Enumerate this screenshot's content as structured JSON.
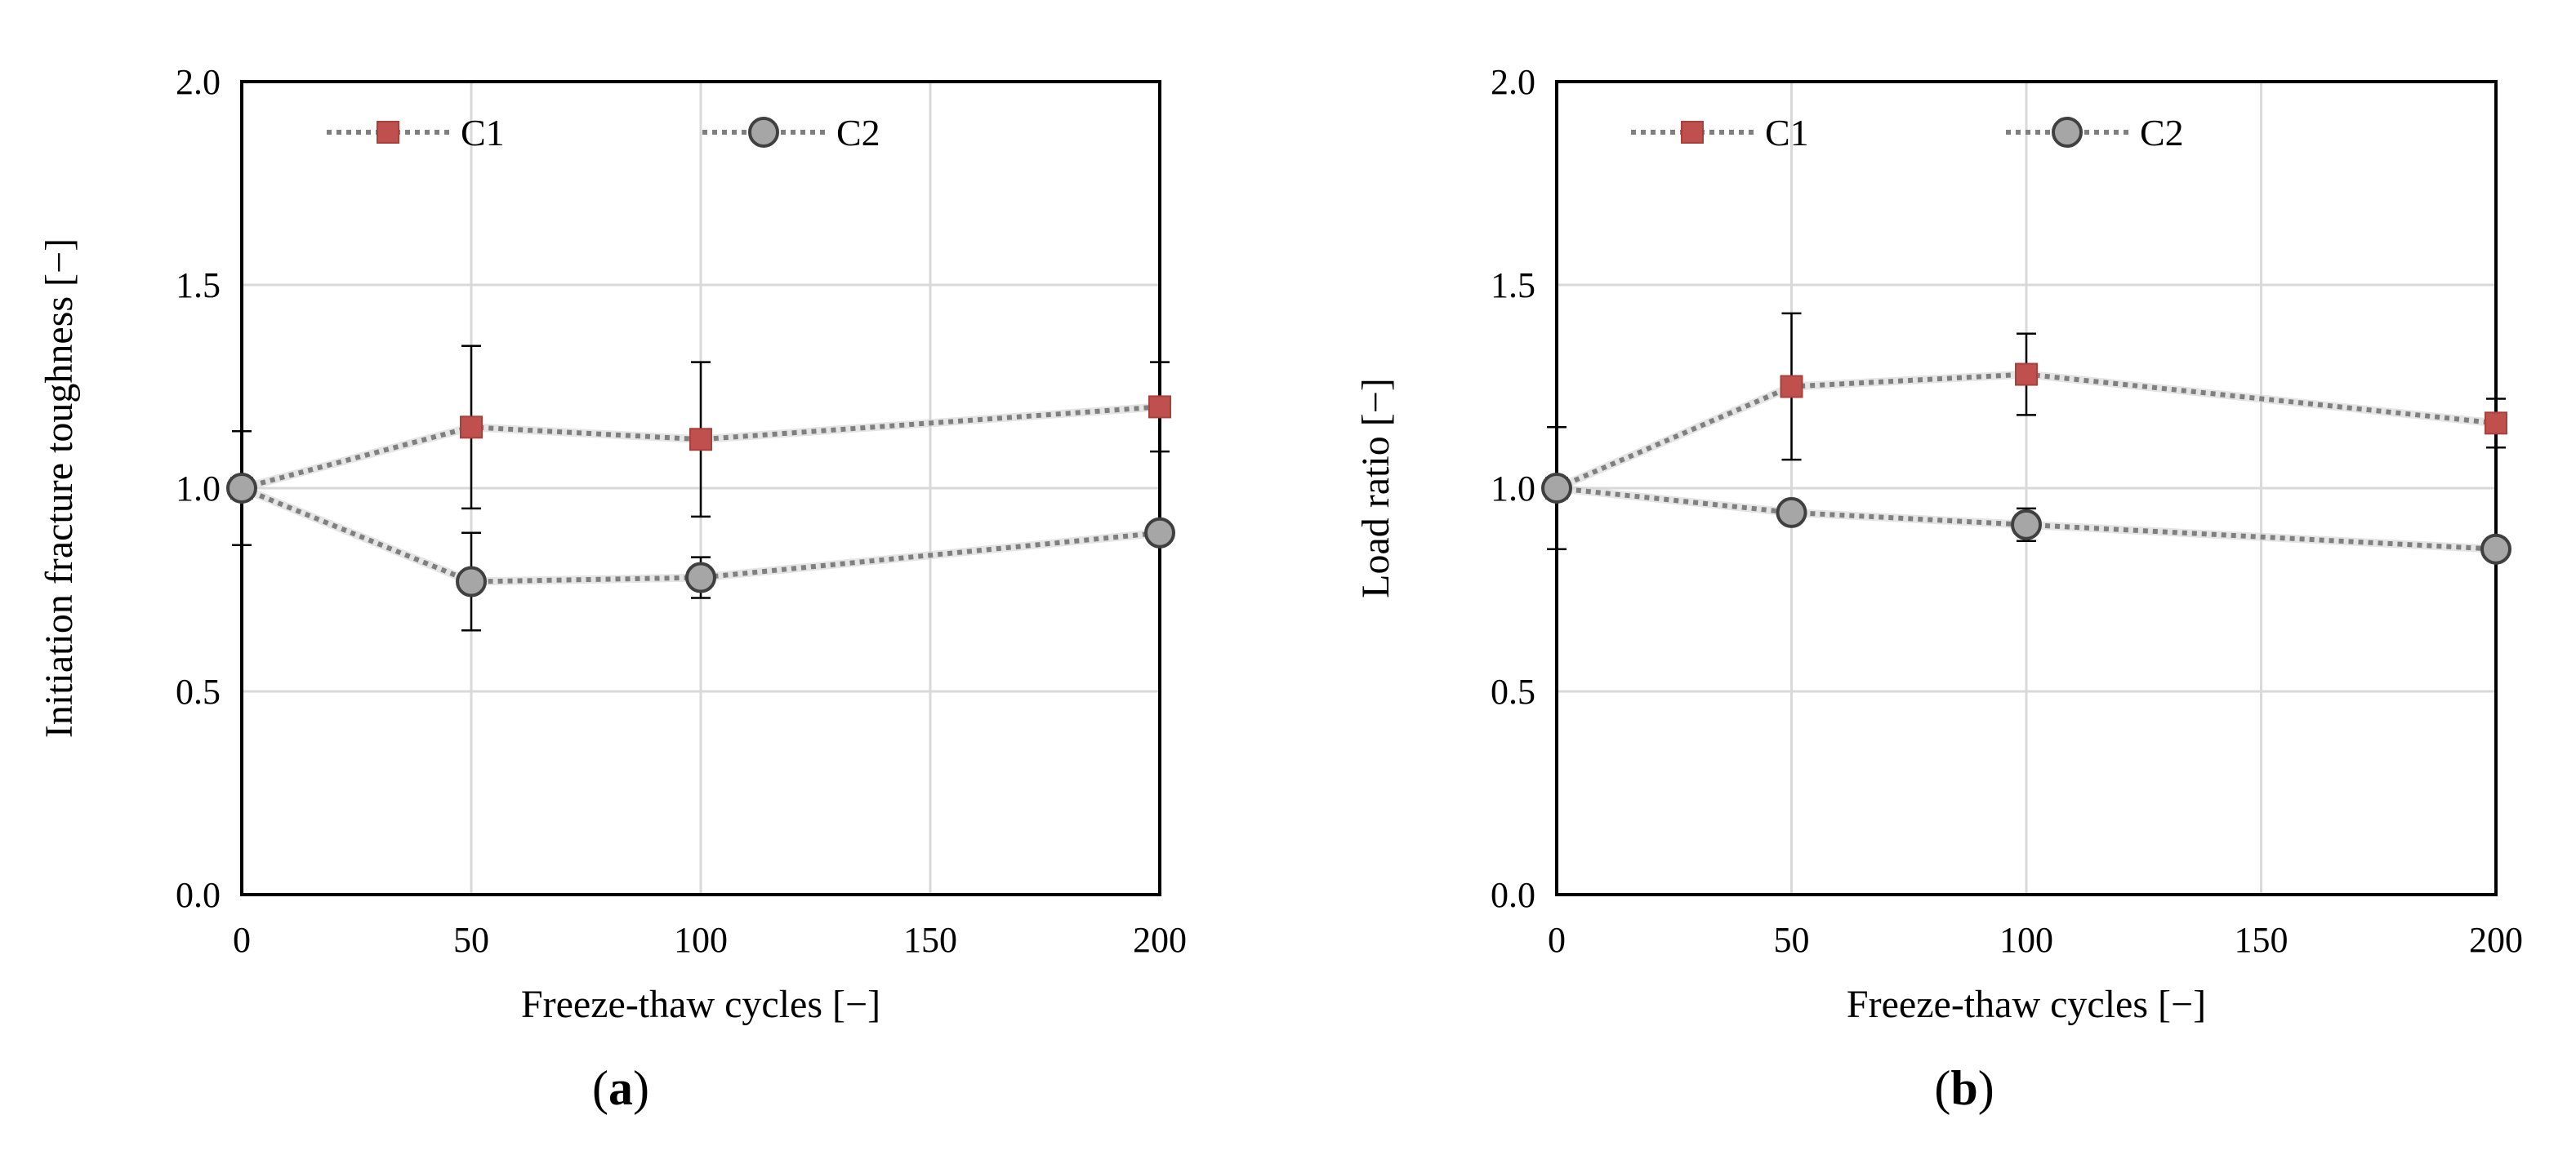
{
  "chart_data": [
    {
      "type": "line",
      "panel_label": "a",
      "xlabel": "Freeze-thaw cycles [−]",
      "ylabel": "Initiation  fracture toughness [−]",
      "xlim": [
        0,
        200
      ],
      "ylim": [
        0.0,
        2.0
      ],
      "xticks": [
        "0",
        "50",
        "100",
        "150",
        "200"
      ],
      "yticks": [
        "0.0",
        "0.5",
        "1.0",
        "1.5",
        "2.0"
      ],
      "grid": true,
      "legend_position": "top",
      "series": [
        {
          "name": "C1",
          "marker": "square",
          "color": "#c0504d",
          "x": [
            0,
            50,
            100,
            200
          ],
          "values": [
            1.0,
            1.15,
            1.12,
            1.2
          ],
          "error": [
            0.14,
            0.2,
            0.19,
            0.11
          ]
        },
        {
          "name": "C2",
          "marker": "circle",
          "color": "#a6a6a6",
          "x": [
            0,
            50,
            100,
            200
          ],
          "values": [
            1.0,
            0.77,
            0.78,
            0.89
          ],
          "error": [
            0.0,
            0.12,
            0.05,
            0.0
          ]
        }
      ]
    },
    {
      "type": "line",
      "panel_label": "b",
      "xlabel": "Freeze-thaw cycles [−]",
      "ylabel": "Load ratio [−]",
      "xlim": [
        0,
        200
      ],
      "ylim": [
        0.0,
        2.0
      ],
      "xticks": [
        "0",
        "50",
        "100",
        "150",
        "200"
      ],
      "yticks": [
        "0.0",
        "0.5",
        "1.0",
        "1.5",
        "2.0"
      ],
      "grid": true,
      "legend_position": "top",
      "series": [
        {
          "name": "C1",
          "marker": "square",
          "color": "#c0504d",
          "x": [
            0,
            50,
            100,
            200
          ],
          "values": [
            1.0,
            1.25,
            1.28,
            1.16
          ],
          "error": [
            0.15,
            0.18,
            0.1,
            0.06
          ]
        },
        {
          "name": "C2",
          "marker": "circle",
          "color": "#a6a6a6",
          "x": [
            0,
            50,
            100,
            200
          ],
          "values": [
            1.0,
            0.94,
            0.91,
            0.85
          ],
          "error": [
            0.0,
            0.0,
            0.04,
            0.0
          ]
        }
      ]
    }
  ]
}
